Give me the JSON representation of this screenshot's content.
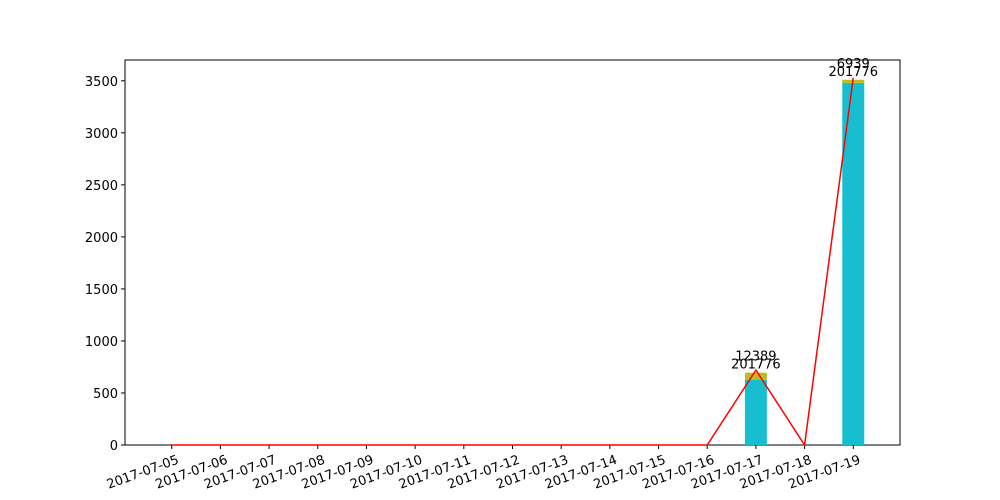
{
  "chart_data": {
    "type": "bar",
    "categories": [
      "2017-07-05",
      "2017-07-06",
      "2017-07-07",
      "2017-07-08",
      "2017-07-09",
      "2017-07-10",
      "2017-07-11",
      "2017-07-12",
      "2017-07-13",
      "2017-07-14",
      "2017-07-15",
      "2017-07-16",
      "2017-07-17",
      "2017-07-18",
      "2017-07-19"
    ],
    "series": [
      {
        "type": "bar",
        "color": "#17becf",
        "values": [
          0,
          0,
          0,
          0,
          0,
          0,
          0,
          0,
          0,
          0,
          0,
          0,
          625,
          0,
          3480
        ]
      },
      {
        "type": "bar",
        "color": "#bcbd22",
        "values": [
          0,
          0,
          0,
          0,
          0,
          0,
          0,
          0,
          0,
          0,
          0,
          0,
          70,
          0,
          30
        ]
      },
      {
        "type": "line",
        "color": "#ff0000",
        "values": [
          0,
          0,
          0,
          0,
          0,
          0,
          0,
          0,
          0,
          0,
          0,
          0,
          720,
          0,
          3530
        ]
      }
    ],
    "annotations": [
      {
        "category": 12,
        "texts": [
          "12389",
          "201776"
        ]
      },
      {
        "category": 14,
        "texts": [
          "6939",
          "201776"
        ]
      }
    ],
    "ylim": [
      0,
      3700
    ],
    "yticks": [
      0,
      500,
      1000,
      1500,
      2000,
      2500,
      3000,
      3500
    ],
    "grid": false
  }
}
